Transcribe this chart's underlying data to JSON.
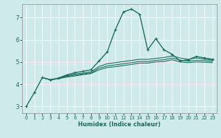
{
  "xlabel": "Humidex (Indice chaleur)",
  "ylabel": "",
  "background_color": "#ceeaea",
  "grid_color": "#ffffff",
  "line_color": "#1a6b5e",
  "xlim": [
    -0.5,
    23.5
  ],
  "ylim": [
    2.7,
    7.6
  ],
  "xticks": [
    0,
    1,
    2,
    3,
    4,
    5,
    6,
    7,
    8,
    9,
    10,
    11,
    12,
    13,
    14,
    15,
    16,
    17,
    18,
    19,
    20,
    21,
    22,
    23
  ],
  "yticks": [
    3,
    4,
    5,
    6,
    7
  ],
  "hlines": [
    4.0,
    5.0
  ],
  "hline_color": "#e08080",
  "series": [
    {
      "x": [
        0,
        1,
        2,
        3,
        4,
        5,
        6,
        7,
        8,
        9,
        10,
        11,
        12,
        13,
        14,
        15,
        16,
        17,
        18,
        19,
        20,
        21,
        22,
        23
      ],
      "y": [
        3.0,
        3.62,
        4.3,
        4.2,
        4.28,
        4.42,
        4.52,
        4.58,
        4.65,
        5.05,
        5.45,
        6.45,
        7.25,
        7.38,
        7.15,
        5.55,
        6.05,
        5.55,
        5.35,
        5.05,
        5.1,
        5.25,
        5.18,
        5.12
      ],
      "marker": true,
      "lw": 1.0
    },
    {
      "x": [
        2,
        3,
        4,
        5,
        6,
        7,
        8,
        9,
        10,
        11,
        12,
        13,
        14,
        15,
        16,
        17,
        18,
        19,
        20,
        21,
        22,
        23
      ],
      "y": [
        4.3,
        4.2,
        4.27,
        4.38,
        4.46,
        4.5,
        4.56,
        4.8,
        4.92,
        4.97,
        5.02,
        5.07,
        5.12,
        5.12,
        5.16,
        5.2,
        5.27,
        5.18,
        5.12,
        5.18,
        5.13,
        5.08
      ],
      "marker": false,
      "lw": 0.8
    },
    {
      "x": [
        2,
        3,
        4,
        5,
        6,
        7,
        8,
        9,
        10,
        11,
        12,
        13,
        14,
        15,
        16,
        17,
        18,
        19,
        20,
        21,
        22,
        23
      ],
      "y": [
        4.3,
        4.2,
        4.26,
        4.35,
        4.41,
        4.46,
        4.51,
        4.72,
        4.82,
        4.87,
        4.92,
        4.97,
        5.02,
        5.02,
        5.07,
        5.1,
        5.18,
        5.08,
        5.04,
        5.07,
        5.06,
        5.03
      ],
      "marker": false,
      "lw": 0.8
    },
    {
      "x": [
        2,
        3,
        4,
        5,
        6,
        7,
        8,
        9,
        10,
        11,
        12,
        13,
        14,
        15,
        16,
        17,
        18,
        19,
        20,
        21,
        22,
        23
      ],
      "y": [
        4.3,
        4.2,
        4.25,
        4.32,
        4.37,
        4.43,
        4.48,
        4.65,
        4.75,
        4.79,
        4.84,
        4.89,
        4.95,
        4.95,
        5.0,
        5.02,
        5.1,
        5.0,
        4.97,
        5.0,
        4.99,
        4.97
      ],
      "marker": false,
      "lw": 0.8
    }
  ]
}
